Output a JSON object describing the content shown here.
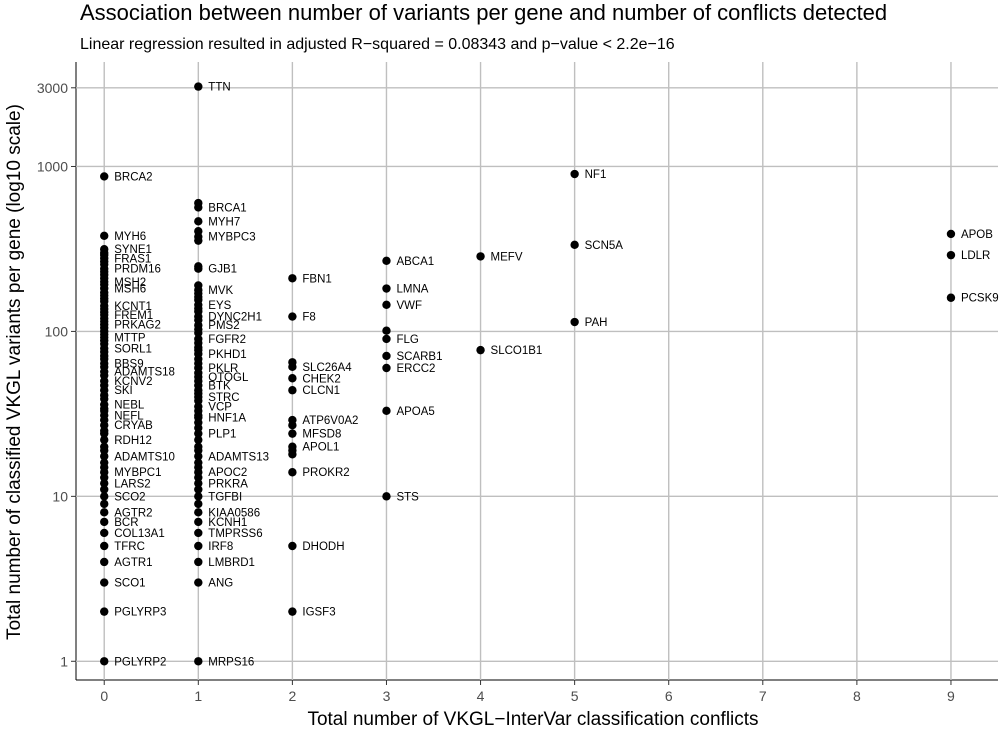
{
  "chart_data": {
    "type": "scatter",
    "title": "Association between number of variants per gene and number of conflicts detected",
    "subtitle": "Linear regression resulted in adjusted R−squared = 0.08343 and p−value < 2.2e−16",
    "xlabel": "Total number of VKGL−InterVar classification conflicts",
    "ylabel": "Total number of classified VKGL variants per gene (log10 scale)",
    "x_scale": "linear",
    "y_scale": "log10",
    "xlim": [
      -0.3,
      9.5
    ],
    "ylim": [
      0.77,
      4300
    ],
    "x_ticks": [
      0,
      1,
      2,
      3,
      4,
      5,
      6,
      7,
      8,
      9
    ],
    "y_ticks": [
      1,
      10,
      100,
      1000,
      3000
    ],
    "grid": true,
    "labeled_points": [
      {
        "label": "TTN",
        "x": 1,
        "y": 3050
      },
      {
        "label": "BRCA2",
        "x": 0,
        "y": 870
      },
      {
        "label": "NF1",
        "x": 5,
        "y": 900
      },
      {
        "label": "BRCA1",
        "x": 1,
        "y": 565
      },
      {
        "label": "MYH7",
        "x": 1,
        "y": 465
      },
      {
        "label": "MYH6",
        "x": 0,
        "y": 380
      },
      {
        "label": "MYBPC3",
        "x": 1,
        "y": 375
      },
      {
        "label": "APOB",
        "x": 9,
        "y": 390
      },
      {
        "label": "SCN5A",
        "x": 5,
        "y": 335
      },
      {
        "label": "SYNE1",
        "x": 0,
        "y": 315
      },
      {
        "label": "FRAS1",
        "x": 0,
        "y": 277
      },
      {
        "label": "ABCA1",
        "x": 3,
        "y": 268
      },
      {
        "label": "MEFV",
        "x": 4,
        "y": 285
      },
      {
        "label": "LDLR",
        "x": 9,
        "y": 290
      },
      {
        "label": "GJB1",
        "x": 1,
        "y": 240
      },
      {
        "label": "PRDM16",
        "x": 0,
        "y": 240
      },
      {
        "label": "FBN1",
        "x": 2,
        "y": 210
      },
      {
        "label": "MSH2",
        "x": 0,
        "y": 200
      },
      {
        "label": "LMNA",
        "x": 3,
        "y": 182
      },
      {
        "label": "MSH6",
        "x": 0,
        "y": 182
      },
      {
        "label": "MVK",
        "x": 1,
        "y": 178
      },
      {
        "label": "PCSK9",
        "x": 9,
        "y": 160
      },
      {
        "label": "VWF",
        "x": 3,
        "y": 145
      },
      {
        "label": "KCNT1",
        "x": 0,
        "y": 143
      },
      {
        "label": "EYS",
        "x": 1,
        "y": 145
      },
      {
        "label": "FREM1",
        "x": 0,
        "y": 126
      },
      {
        "label": "F8",
        "x": 2,
        "y": 123
      },
      {
        "label": "DYNC2H1",
        "x": 1,
        "y": 123
      },
      {
        "label": "PAH",
        "x": 5,
        "y": 114
      },
      {
        "label": "PRKAG2",
        "x": 0,
        "y": 110
      },
      {
        "label": "PMS2",
        "x": 1,
        "y": 109
      },
      {
        "label": "MTTP",
        "x": 0,
        "y": 92
      },
      {
        "label": "FLG",
        "x": 3,
        "y": 90
      },
      {
        "label": "FGFR2",
        "x": 1,
        "y": 90
      },
      {
        "label": "SORL1",
        "x": 0,
        "y": 79
      },
      {
        "label": "SLCO1B1",
        "x": 4,
        "y": 77
      },
      {
        "label": "PKHD1",
        "x": 1,
        "y": 73
      },
      {
        "label": "SCARB1",
        "x": 3,
        "y": 71
      },
      {
        "label": "BBS9",
        "x": 0,
        "y": 64
      },
      {
        "label": "SLC26A4",
        "x": 2,
        "y": 61
      },
      {
        "label": "PKLR",
        "x": 1,
        "y": 60
      },
      {
        "label": "ERCC2",
        "x": 3,
        "y": 60
      },
      {
        "label": "ADAMTS18",
        "x": 0,
        "y": 57
      },
      {
        "label": "OTOGL",
        "x": 1,
        "y": 53
      },
      {
        "label": "CHEK2",
        "x": 2,
        "y": 52
      },
      {
        "label": "KCNV2",
        "x": 0,
        "y": 50
      },
      {
        "label": "BTK",
        "x": 1,
        "y": 47
      },
      {
        "label": "CLCN1",
        "x": 2,
        "y": 44
      },
      {
        "label": "SKI",
        "x": 0,
        "y": 44
      },
      {
        "label": "STRC",
        "x": 1,
        "y": 40
      },
      {
        "label": "NEBL",
        "x": 0,
        "y": 36
      },
      {
        "label": "VCP",
        "x": 1,
        "y": 35
      },
      {
        "label": "APOA5",
        "x": 3,
        "y": 33
      },
      {
        "label": "NEFL",
        "x": 0,
        "y": 31
      },
      {
        "label": "HNF1A",
        "x": 1,
        "y": 30
      },
      {
        "label": "ATP6V0A2",
        "x": 2,
        "y": 29
      },
      {
        "label": "CRYAB",
        "x": 0,
        "y": 27
      },
      {
        "label": "MFSD8",
        "x": 2,
        "y": 24
      },
      {
        "label": "PLP1",
        "x": 1,
        "y": 24
      },
      {
        "label": "RDH12",
        "x": 0,
        "y": 22
      },
      {
        "label": "APOL1",
        "x": 2,
        "y": 20
      },
      {
        "label": "ADAMTS13",
        "x": 1,
        "y": 17.5
      },
      {
        "label": "ADAMTS10",
        "x": 0,
        "y": 17.5
      },
      {
        "label": "PROKR2",
        "x": 2,
        "y": 14
      },
      {
        "label": "MYBPC1",
        "x": 0,
        "y": 14
      },
      {
        "label": "APOC2",
        "x": 1,
        "y": 14
      },
      {
        "label": "PRKRA",
        "x": 1,
        "y": 12
      },
      {
        "label": "LARS2",
        "x": 0,
        "y": 12
      },
      {
        "label": "SCO2",
        "x": 0,
        "y": 10
      },
      {
        "label": "TGFBI",
        "x": 1,
        "y": 10
      },
      {
        "label": "STS",
        "x": 3,
        "y": 10
      },
      {
        "label": "KIAA0586",
        "x": 1,
        "y": 8
      },
      {
        "label": "AGTR2",
        "x": 0,
        "y": 8
      },
      {
        "label": "BCR",
        "x": 0,
        "y": 7
      },
      {
        "label": "KCNH1",
        "x": 1,
        "y": 7
      },
      {
        "label": "COL13A1",
        "x": 0,
        "y": 6
      },
      {
        "label": "TMPRSS6",
        "x": 1,
        "y": 6
      },
      {
        "label": "TFRC",
        "x": 0,
        "y": 5
      },
      {
        "label": "IRF8",
        "x": 1,
        "y": 5
      },
      {
        "label": "DHODH",
        "x": 2,
        "y": 5
      },
      {
        "label": "AGTR1",
        "x": 0,
        "y": 4
      },
      {
        "label": "LMBRD1",
        "x": 1,
        "y": 4
      },
      {
        "label": "SCO1",
        "x": 0,
        "y": 3
      },
      {
        "label": "ANG",
        "x": 1,
        "y": 3
      },
      {
        "label": "PGLYRP3",
        "x": 0,
        "y": 2
      },
      {
        "label": "IGSF3",
        "x": 2,
        "y": 2
      },
      {
        "label": "PGLYRP2",
        "x": 0,
        "y": 1
      },
      {
        "label": "MRPS16",
        "x": 1,
        "y": 1
      }
    ],
    "unlabeled_points": [
      {
        "x": 0,
        "y": 300
      },
      {
        "x": 0,
        "y": 290
      },
      {
        "x": 0,
        "y": 265
      },
      {
        "x": 0,
        "y": 255
      },
      {
        "x": 0,
        "y": 230
      },
      {
        "x": 0,
        "y": 220
      },
      {
        "x": 0,
        "y": 210
      },
      {
        "x": 0,
        "y": 192
      },
      {
        "x": 0,
        "y": 172
      },
      {
        "x": 0,
        "y": 165
      },
      {
        "x": 0,
        "y": 158
      },
      {
        "x": 0,
        "y": 152
      },
      {
        "x": 0,
        "y": 137
      },
      {
        "x": 0,
        "y": 131
      },
      {
        "x": 0,
        "y": 120
      },
      {
        "x": 0,
        "y": 115
      },
      {
        "x": 0,
        "y": 105
      },
      {
        "x": 0,
        "y": 100
      },
      {
        "x": 0,
        "y": 96
      },
      {
        "x": 0,
        "y": 88
      },
      {
        "x": 0,
        "y": 84
      },
      {
        "x": 0,
        "y": 75
      },
      {
        "x": 0,
        "y": 71
      },
      {
        "x": 0,
        "y": 68
      },
      {
        "x": 0,
        "y": 61
      },
      {
        "x": 0,
        "y": 54
      },
      {
        "x": 0,
        "y": 47
      },
      {
        "x": 0,
        "y": 41
      },
      {
        "x": 0,
        "y": 39
      },
      {
        "x": 0,
        "y": 34
      },
      {
        "x": 0,
        "y": 33
      },
      {
        "x": 0,
        "y": 29
      },
      {
        "x": 0,
        "y": 25
      },
      {
        "x": 0,
        "y": 24
      },
      {
        "x": 0,
        "y": 20
      },
      {
        "x": 0,
        "y": 19
      },
      {
        "x": 0,
        "y": 16
      },
      {
        "x": 0,
        "y": 15
      },
      {
        "x": 0,
        "y": 13
      },
      {
        "x": 0,
        "y": 11
      },
      {
        "x": 0,
        "y": 9
      },
      {
        "x": 1,
        "y": 600
      },
      {
        "x": 1,
        "y": 405
      },
      {
        "x": 1,
        "y": 355
      },
      {
        "x": 1,
        "y": 248
      },
      {
        "x": 1,
        "y": 190
      },
      {
        "x": 1,
        "y": 170
      },
      {
        "x": 1,
        "y": 162
      },
      {
        "x": 1,
        "y": 155
      },
      {
        "x": 1,
        "y": 138
      },
      {
        "x": 1,
        "y": 132
      },
      {
        "x": 1,
        "y": 117
      },
      {
        "x": 1,
        "y": 103
      },
      {
        "x": 1,
        "y": 98
      },
      {
        "x": 1,
        "y": 85
      },
      {
        "x": 1,
        "y": 80
      },
      {
        "x": 1,
        "y": 77
      },
      {
        "x": 1,
        "y": 68
      },
      {
        "x": 1,
        "y": 64
      },
      {
        "x": 1,
        "y": 56
      },
      {
        "x": 1,
        "y": 50
      },
      {
        "x": 1,
        "y": 44
      },
      {
        "x": 1,
        "y": 42
      },
      {
        "x": 1,
        "y": 38
      },
      {
        "x": 1,
        "y": 33
      },
      {
        "x": 1,
        "y": 31
      },
      {
        "x": 1,
        "y": 28
      },
      {
        "x": 1,
        "y": 26
      },
      {
        "x": 1,
        "y": 22
      },
      {
        "x": 1,
        "y": 20
      },
      {
        "x": 1,
        "y": 19
      },
      {
        "x": 1,
        "y": 16
      },
      {
        "x": 1,
        "y": 15
      },
      {
        "x": 1,
        "y": 13
      },
      {
        "x": 1,
        "y": 11
      },
      {
        "x": 1,
        "y": 9
      },
      {
        "x": 2,
        "y": 65
      },
      {
        "x": 2,
        "y": 27
      },
      {
        "x": 2,
        "y": 19
      },
      {
        "x": 2,
        "y": 18
      },
      {
        "x": 3,
        "y": 101
      }
    ]
  }
}
